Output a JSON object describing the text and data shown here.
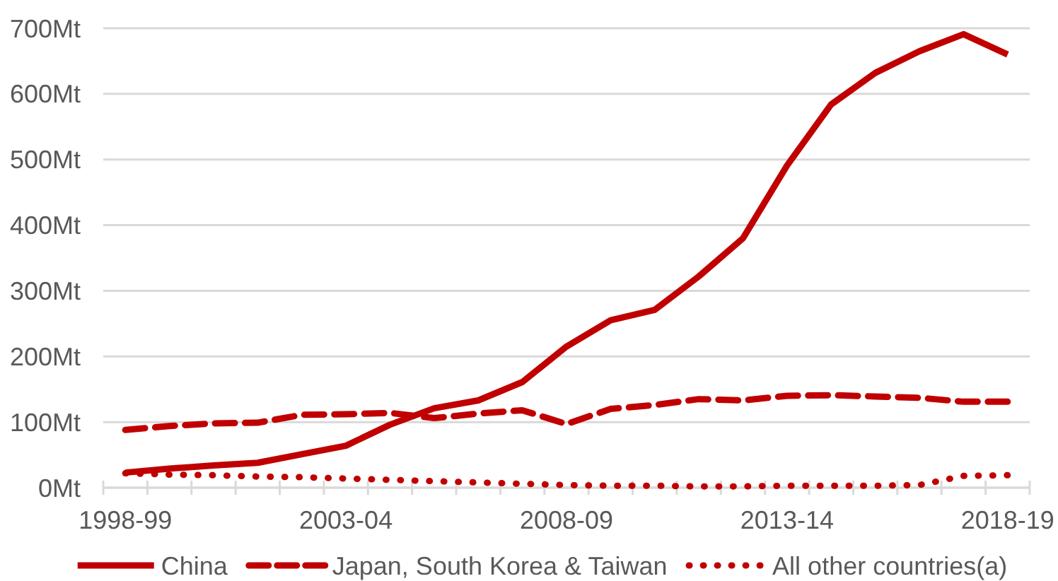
{
  "chart_data": {
    "type": "line",
    "categories": [
      "1998-99",
      null,
      null,
      null,
      null,
      "2003-04",
      null,
      null,
      null,
      null,
      "2008-09",
      null,
      null,
      null,
      null,
      "2013-14",
      null,
      null,
      null,
      null,
      "2018-19"
    ],
    "series": [
      {
        "name": "China",
        "color": "#c00000",
        "line_style": "solid",
        "values": [
          23,
          29,
          34,
          38,
          51,
          64,
          96,
          121,
          133,
          161,
          215,
          255,
          271,
          322,
          380,
          491,
          584,
          632,
          665,
          691,
          660
        ]
      },
      {
        "name": "Japan, South Korea & Taiwan",
        "color": "#c00000",
        "line_style": "dashed",
        "values": [
          88,
          94,
          98,
          99,
          111,
          112,
          114,
          106,
          113,
          118,
          97,
          120,
          126,
          135,
          133,
          140,
          141,
          139,
          137,
          131,
          131
        ]
      },
      {
        "name": "All other countries(a)",
        "color": "#c00000",
        "line_style": "dotted",
        "values": [
          22,
          20,
          19,
          17,
          16,
          14,
          12,
          10,
          8,
          6,
          4,
          3,
          3,
          2,
          2,
          3,
          3,
          3,
          4,
          18,
          19
        ]
      }
    ],
    "ylim": [
      0,
      700
    ],
    "yticks": [
      {
        "value": 0,
        "label": "0Mt"
      },
      {
        "value": 100,
        "label": "100Mt"
      },
      {
        "value": 200,
        "label": "200Mt"
      },
      {
        "value": 300,
        "label": "300Mt"
      },
      {
        "value": 400,
        "label": "400Mt"
      },
      {
        "value": 500,
        "label": "500Mt"
      },
      {
        "value": 600,
        "label": "600Mt"
      },
      {
        "value": 700,
        "label": "700Mt"
      }
    ],
    "grid": "y",
    "legend": "bottom"
  }
}
